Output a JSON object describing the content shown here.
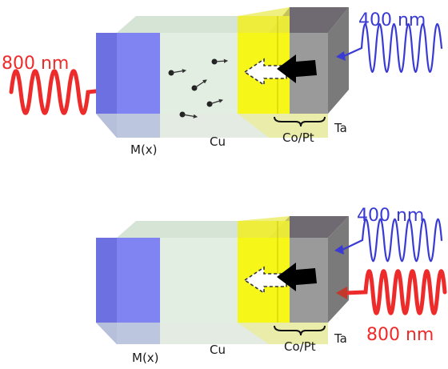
{
  "colors": {
    "red_beam": "#ee2b2b",
    "blue_beam": "#3a3ad4",
    "mx_layer": "#7f84f2",
    "cu_layer": "#e3eee3",
    "copt_layer": "#f6f500",
    "ta_layer": "#8a8a8a",
    "arrow": "#000000"
  },
  "top_panel": {
    "left_beam_label": "800 nm",
    "right_beam_label": "400 nm",
    "labels": {
      "mx": "M(x)",
      "cu": "Cu",
      "copt": "Co/Pt",
      "ta": "Ta"
    }
  },
  "bottom_panel": {
    "right_beam_label_top": "400 nm",
    "right_beam_label_bottom": "800 nm",
    "labels": {
      "mx": "M(x)",
      "cu": "Cu",
      "copt": "Co/Pt",
      "ta": "Ta"
    }
  }
}
